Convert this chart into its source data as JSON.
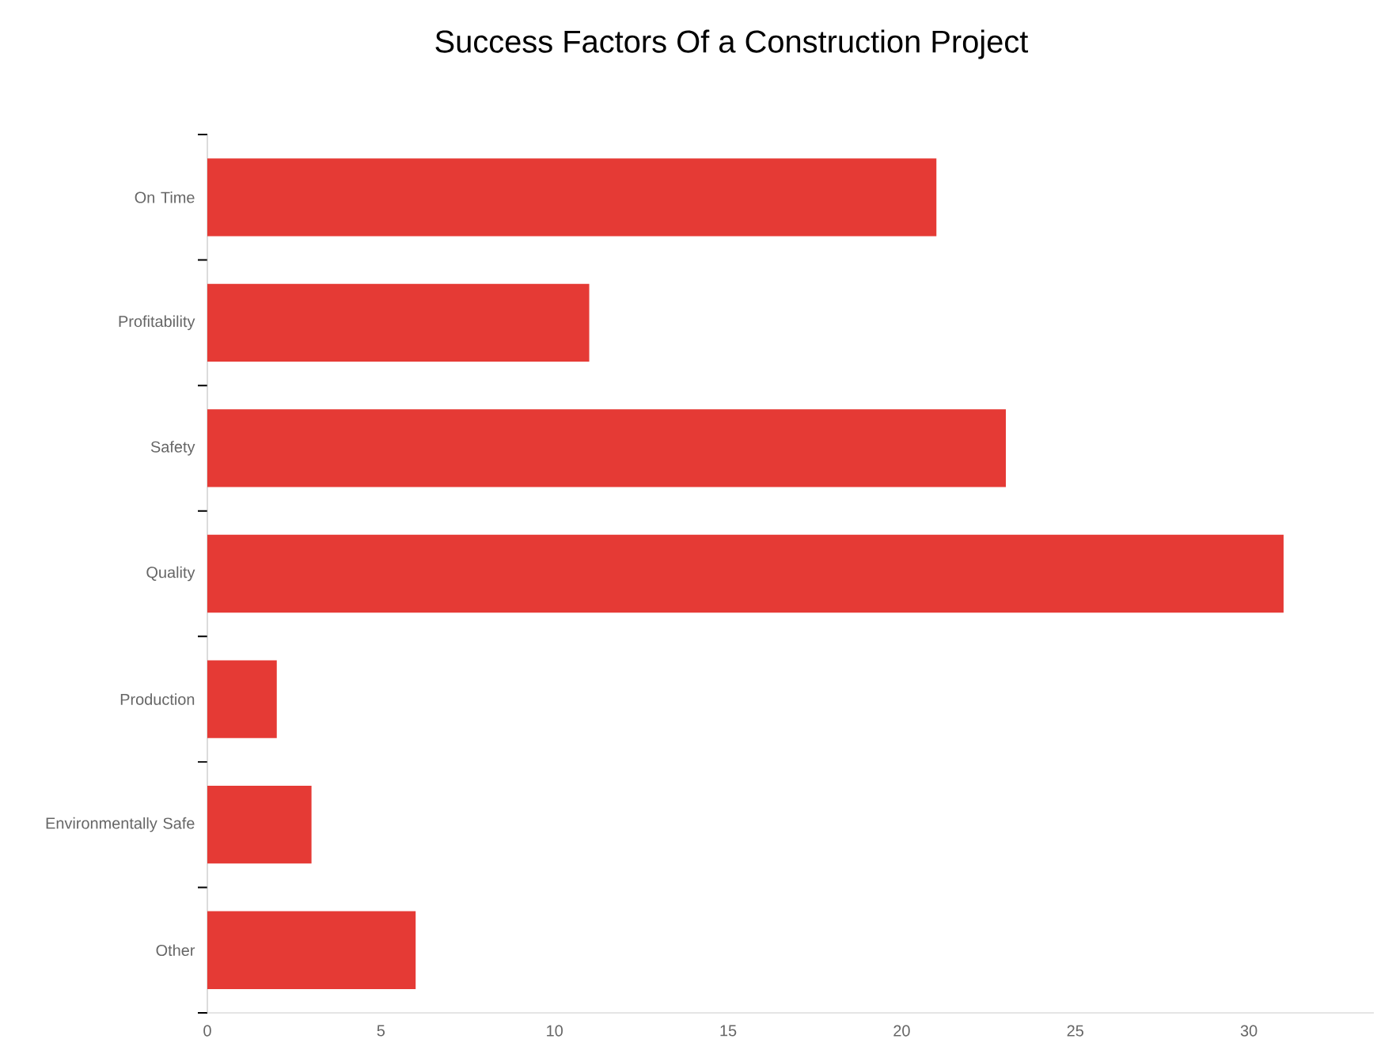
{
  "chart_data": {
    "type": "bar",
    "orientation": "horizontal",
    "title": "Success Factors Of a Construction Project",
    "categories": [
      "On Time",
      "Profitability",
      "Safety",
      "Quality",
      "Production",
      "Environmentally Safe",
      "Other"
    ],
    "values": [
      21,
      11,
      23,
      31,
      2,
      3,
      6
    ],
    "color": "#e53a35",
    "xlim": [
      0,
      33.6
    ],
    "xticks": [
      0,
      5,
      10,
      15,
      20,
      25,
      30
    ]
  }
}
